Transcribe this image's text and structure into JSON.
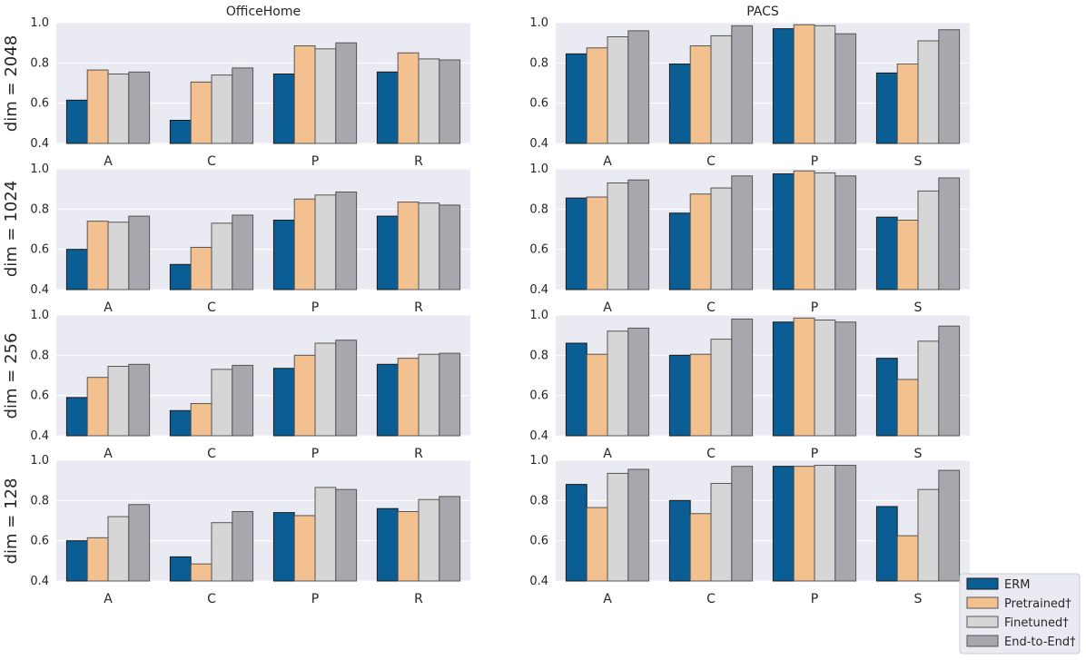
{
  "chart_data": {
    "type": "bar",
    "column_titles": [
      "OfficeHome",
      "PACS"
    ],
    "row_labels": [
      "dim = 2048",
      "dim = 1024",
      "dim = 256",
      "dim = 128"
    ],
    "ylim": [
      0.4,
      1.0
    ],
    "yticks": [
      "0.4",
      "0.6",
      "0.8",
      "1.0"
    ],
    "series_names": [
      "ERM",
      "Pretrained†",
      "Finetuned†",
      "End-to-End†"
    ],
    "series_colors": [
      "#0b5e94",
      "#f3c08f",
      "#d6d6d6",
      "#a7a7ad"
    ],
    "legend_location": "bottom-right",
    "panels": [
      {
        "row": 0,
        "col": 0,
        "dataset": "OfficeHome",
        "categories": [
          "A",
          "C",
          "P",
          "R"
        ],
        "values": [
          [
            0.615,
            0.765,
            0.745,
            0.755
          ],
          [
            0.515,
            0.705,
            0.74,
            0.775
          ],
          [
            0.745,
            0.885,
            0.87,
            0.9
          ],
          [
            0.755,
            0.85,
            0.82,
            0.815
          ]
        ]
      },
      {
        "row": 0,
        "col": 1,
        "dataset": "PACS",
        "categories": [
          "A",
          "C",
          "P",
          "S"
        ],
        "values": [
          [
            0.845,
            0.875,
            0.93,
            0.96
          ],
          [
            0.795,
            0.885,
            0.935,
            0.985
          ],
          [
            0.97,
            0.99,
            0.985,
            0.945
          ],
          [
            0.75,
            0.795,
            0.91,
            0.965
          ]
        ]
      },
      {
        "row": 1,
        "col": 0,
        "dataset": "OfficeHome",
        "categories": [
          "A",
          "C",
          "P",
          "R"
        ],
        "values": [
          [
            0.6,
            0.74,
            0.735,
            0.765
          ],
          [
            0.525,
            0.61,
            0.73,
            0.77
          ],
          [
            0.745,
            0.85,
            0.87,
            0.885
          ],
          [
            0.765,
            0.835,
            0.83,
            0.82
          ]
        ]
      },
      {
        "row": 1,
        "col": 1,
        "dataset": "PACS",
        "categories": [
          "A",
          "C",
          "P",
          "S"
        ],
        "values": [
          [
            0.855,
            0.86,
            0.93,
            0.945
          ],
          [
            0.78,
            0.875,
            0.905,
            0.965
          ],
          [
            0.975,
            0.99,
            0.98,
            0.965
          ],
          [
            0.76,
            0.745,
            0.89,
            0.955
          ]
        ]
      },
      {
        "row": 2,
        "col": 0,
        "dataset": "OfficeHome",
        "categories": [
          "A",
          "C",
          "P",
          "R"
        ],
        "values": [
          [
            0.59,
            0.69,
            0.745,
            0.755
          ],
          [
            0.525,
            0.56,
            0.73,
            0.75
          ],
          [
            0.735,
            0.8,
            0.86,
            0.875
          ],
          [
            0.755,
            0.785,
            0.805,
            0.81
          ]
        ]
      },
      {
        "row": 2,
        "col": 1,
        "dataset": "PACS",
        "categories": [
          "A",
          "C",
          "P",
          "S"
        ],
        "values": [
          [
            0.86,
            0.805,
            0.92,
            0.935
          ],
          [
            0.8,
            0.805,
            0.88,
            0.98
          ],
          [
            0.965,
            0.985,
            0.975,
            0.965
          ],
          [
            0.785,
            0.68,
            0.87,
            0.945
          ]
        ]
      },
      {
        "row": 3,
        "col": 0,
        "dataset": "OfficeHome",
        "categories": [
          "A",
          "C",
          "P",
          "R"
        ],
        "values": [
          [
            0.6,
            0.615,
            0.72,
            0.78
          ],
          [
            0.52,
            0.485,
            0.69,
            0.745
          ],
          [
            0.74,
            0.725,
            0.865,
            0.855
          ],
          [
            0.76,
            0.745,
            0.805,
            0.82
          ]
        ]
      },
      {
        "row": 3,
        "col": 1,
        "dataset": "PACS",
        "categories": [
          "A",
          "C",
          "P",
          "S"
        ],
        "values": [
          [
            0.88,
            0.765,
            0.935,
            0.955
          ],
          [
            0.8,
            0.735,
            0.885,
            0.97
          ],
          [
            0.97,
            0.97,
            0.975,
            0.975
          ],
          [
            0.77,
            0.625,
            0.855,
            0.95
          ]
        ]
      }
    ]
  }
}
